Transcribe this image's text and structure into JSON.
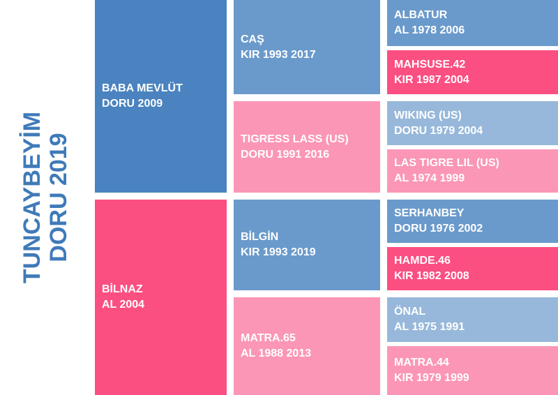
{
  "subject": {
    "name": "TUNCAYBEYİM",
    "info": "DORU 2019"
  },
  "sire": {
    "name": "BABA MEVLÜT",
    "info": "DORU 2009"
  },
  "dam": {
    "name": "BİLNAZ",
    "info": "AL 2004"
  },
  "sire_sire": {
    "name": "CAŞ",
    "info": "KIR 1993 2017"
  },
  "sire_dam": {
    "name": "TIGRESS LASS (US)",
    "info": "DORU 1991 2016"
  },
  "dam_sire": {
    "name": "BİLGİN",
    "info": "KIR 1993 2019"
  },
  "dam_dam": {
    "name": "MATRA.65",
    "info": "AL 1988 2013"
  },
  "ggp": [
    {
      "name": "ALBATUR",
      "info": "AL 1978 2006"
    },
    {
      "name": "MAHSUSE.42",
      "info": "KIR 1987 2004"
    },
    {
      "name": "WIKING (US)",
      "info": "DORU 1979 2004"
    },
    {
      "name": "LAS TIGRE LIL (US)",
      "info": "AL 1974 1999"
    },
    {
      "name": "SERHANBEY",
      "info": "DORU 1976 2002"
    },
    {
      "name": "HAMDE.46",
      "info": "KIR 1982 2008"
    },
    {
      "name": "ÖNAL",
      "info": "AL 1975 1991"
    },
    {
      "name": "MATRA.44",
      "info": "KIR 1979 1999"
    }
  ]
}
